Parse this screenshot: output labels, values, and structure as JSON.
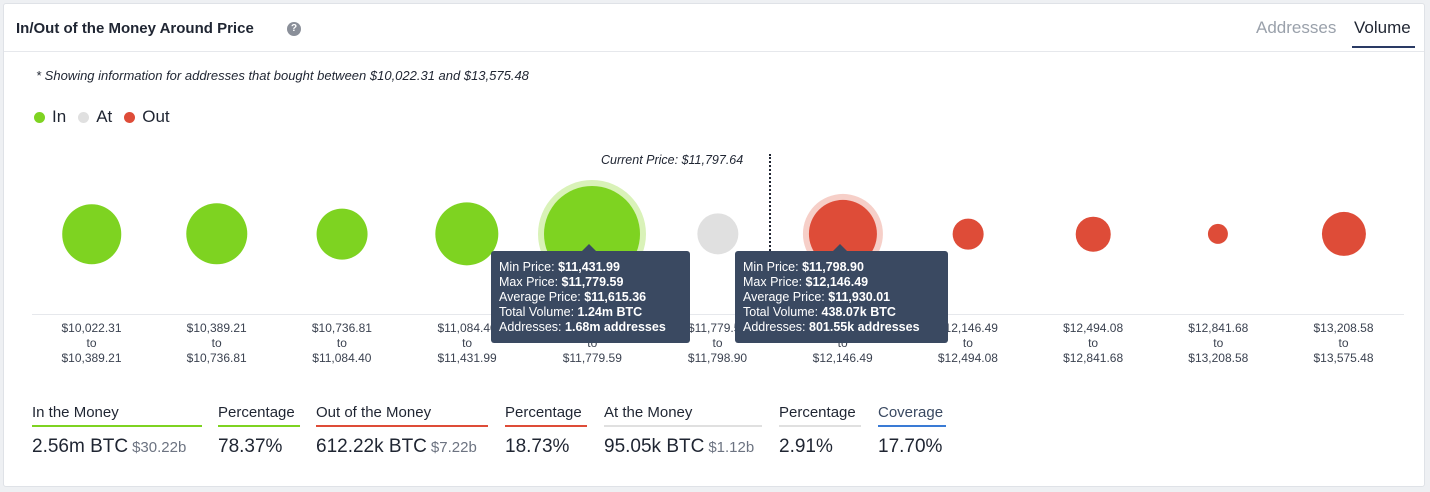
{
  "header": {
    "title": "In/Out of the Money Around Price",
    "help_icon": "question-circle-icon",
    "tabs": [
      {
        "label": "Addresses",
        "active": false
      },
      {
        "label": "Volume",
        "active": true
      }
    ]
  },
  "note": "* Showing information for addresses that bought between $10,022.31 and $13,575.48",
  "legend": [
    {
      "label": "In",
      "color": "#7ed321"
    },
    {
      "label": "At",
      "color": "#e0e0e0"
    },
    {
      "label": "Out",
      "color": "#de4c38"
    }
  ],
  "current_price": {
    "label": "Current Price: $11,797.64"
  },
  "chart_data": {
    "type": "scatter",
    "title": "",
    "xlabel": "",
    "ylabel": "",
    "bubbles": [
      {
        "status": "in",
        "from": "$10,022.31",
        "to": "$10,389.21",
        "size": 0.62
      },
      {
        "status": "in",
        "from": "$10,389.21",
        "to": "$10,736.81",
        "size": 0.64
      },
      {
        "status": "in",
        "from": "$10,736.81",
        "to": "$11,084.40",
        "size": 0.53
      },
      {
        "status": "in",
        "from": "$11,084.40",
        "to": "$11,431.99",
        "size": 0.66
      },
      {
        "status": "in",
        "from": "$11,431.99",
        "to": "$11,779.59",
        "size": 1.0,
        "highlight": true
      },
      {
        "status": "at",
        "from": "$11,779.59",
        "to": "$11,798.90",
        "size": 0.43
      },
      {
        "status": "out",
        "from": "$11,798.90",
        "to": "$12,146.49",
        "size": 0.71,
        "highlight": true
      },
      {
        "status": "out",
        "from": "$12,146.49",
        "to": "$12,494.08",
        "size": 0.32
      },
      {
        "status": "out",
        "from": "$12,494.08",
        "to": "$12,841.68",
        "size": 0.36
      },
      {
        "status": "out",
        "from": "$12,841.68",
        "to": "$13,208.58",
        "size": 0.21
      },
      {
        "status": "out",
        "from": "$13,208.58",
        "to": "$13,575.48",
        "size": 0.46
      }
    ],
    "to_word": "to"
  },
  "tooltips": [
    {
      "min_label": "Min Price:",
      "min": "$11,431.99",
      "max_label": "Max Price:",
      "max": "$11,779.59",
      "avg_label": "Average Price:",
      "avg": "$11,615.36",
      "vol_label": "Total Volume:",
      "vol": "1.24m BTC",
      "addr_label": "Addresses:",
      "addr": "1.68m addresses"
    },
    {
      "min_label": "Min Price:",
      "min": "$11,798.90",
      "max_label": "Max Price:",
      "max": "$12,146.49",
      "avg_label": "Average Price:",
      "avg": "$11,930.01",
      "vol_label": "Total Volume:",
      "vol": "438.07k BTC",
      "addr_label": "Addresses:",
      "addr": "801.55k addresses"
    }
  ],
  "stats": [
    {
      "label": "In the Money",
      "value": "2.56m BTC",
      "sub": "$30.22b",
      "color": "#7ed321"
    },
    {
      "label": "Percentage",
      "value": "78.37%",
      "sub": "",
      "color": "#7ed321"
    },
    {
      "label": "Out of the Money",
      "value": "612.22k BTC",
      "sub": "$7.22b",
      "color": "#de4c38"
    },
    {
      "label": "Percentage",
      "value": "18.73%",
      "sub": "",
      "color": "#de4c38"
    },
    {
      "label": "At the Money",
      "value": "95.05k BTC",
      "sub": "$1.12b",
      "color": "#e0e0e0"
    },
    {
      "label": "Percentage",
      "value": "2.91%",
      "sub": "",
      "color": "#e0e0e0"
    },
    {
      "label": "Coverage",
      "value": "17.70%",
      "sub": "",
      "color": "#3a7bd5"
    }
  ]
}
